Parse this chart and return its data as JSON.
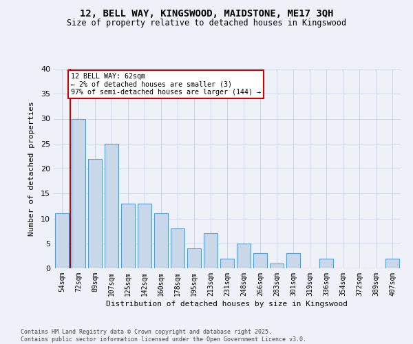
{
  "title_line1": "12, BELL WAY, KINGSWOOD, MAIDSTONE, ME17 3QH",
  "title_line2": "Size of property relative to detached houses in Kingswood",
  "xlabel": "Distribution of detached houses by size in Kingswood",
  "ylabel": "Number of detached properties",
  "categories": [
    "54sqm",
    "72sqm",
    "89sqm",
    "107sqm",
    "125sqm",
    "142sqm",
    "160sqm",
    "178sqm",
    "195sqm",
    "213sqm",
    "231sqm",
    "248sqm",
    "266sqm",
    "283sqm",
    "301sqm",
    "319sqm",
    "336sqm",
    "354sqm",
    "372sqm",
    "389sqm",
    "407sqm"
  ],
  "values": [
    11,
    30,
    22,
    25,
    13,
    13,
    11,
    8,
    4,
    7,
    2,
    5,
    3,
    1,
    3,
    0,
    2,
    0,
    0,
    0,
    2
  ],
  "bar_color": "#c8d8e8",
  "bar_edge_color": "#5b9bd5",
  "annotation_box_text": "12 BELL WAY: 62sqm\n← 2% of detached houses are smaller (3)\n97% of semi-detached houses are larger (144) →",
  "annotation_box_color": "#ffffff",
  "annotation_box_edge_color": "#cc0000",
  "grid_color": "#d0d8e8",
  "background_color": "#eef2f8",
  "ylim": [
    0,
    40
  ],
  "yticks": [
    0,
    5,
    10,
    15,
    20,
    25,
    30,
    35,
    40
  ],
  "footer_text": "Contains HM Land Registry data © Crown copyright and database right 2025.\nContains public sector information licensed under the Open Government Licence v3.0.",
  "highlight_line_color": "#cc0000"
}
